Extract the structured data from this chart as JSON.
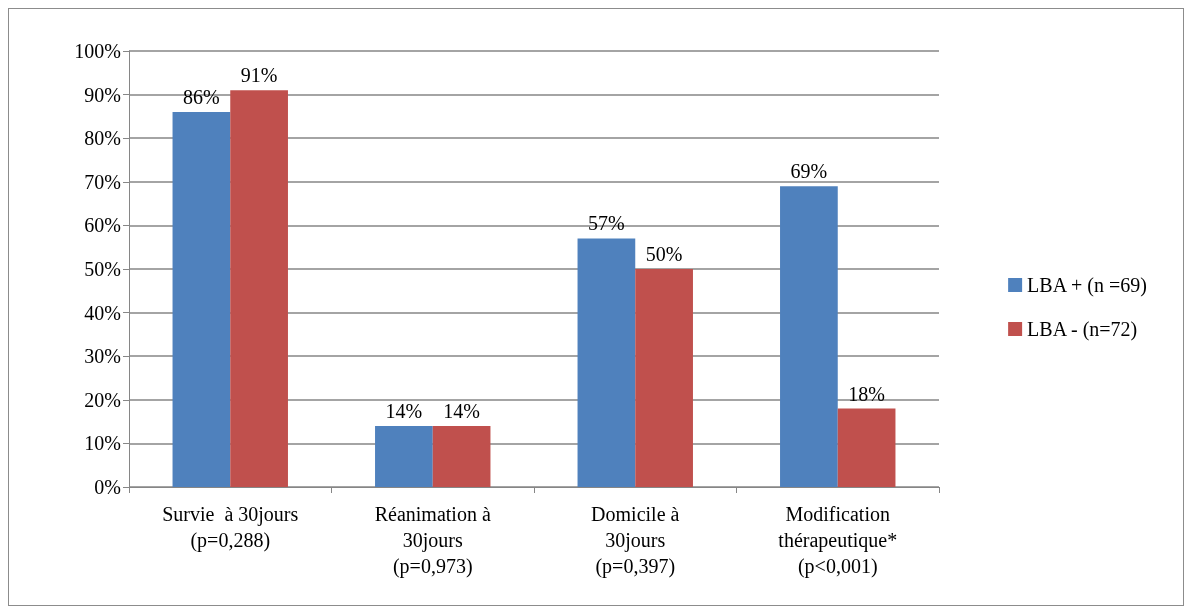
{
  "chart_data": {
    "type": "bar",
    "categories": [
      "Survie  à 30jours\n(p=0,288)",
      "Réanimation à\n30jours\n(p=0,973)",
      "Domicile à\n30jours\n(p=0,397)",
      "Modification\nthérapeutique*\n(p<0,001)"
    ],
    "series": [
      {
        "name": "LBA + (n =69)",
        "color": "#4f81bd",
        "values": [
          86,
          14,
          57,
          69
        ],
        "value_labels": [
          "86%",
          "14%",
          "57%",
          "69%"
        ]
      },
      {
        "name": "LBA - (n=72)",
        "color": "#c0504d",
        "values": [
          91,
          14,
          50,
          18
        ],
        "value_labels": [
          "91%",
          "14%",
          "50%",
          "18%"
        ]
      }
    ],
    "ylim": [
      0,
      100
    ],
    "yticks": [
      {
        "value": 0,
        "label": "0%"
      },
      {
        "value": 10,
        "label": "10%"
      },
      {
        "value": 20,
        "label": "20%"
      },
      {
        "value": 30,
        "label": "30%"
      },
      {
        "value": 40,
        "label": "40%"
      },
      {
        "value": 50,
        "label": "50%"
      },
      {
        "value": 60,
        "label": "60%"
      },
      {
        "value": 70,
        "label": "70%"
      },
      {
        "value": 80,
        "label": "80%"
      },
      {
        "value": 90,
        "label": "90%"
      },
      {
        "value": 100,
        "label": "100%"
      }
    ],
    "grid": "y",
    "legend": "right"
  }
}
